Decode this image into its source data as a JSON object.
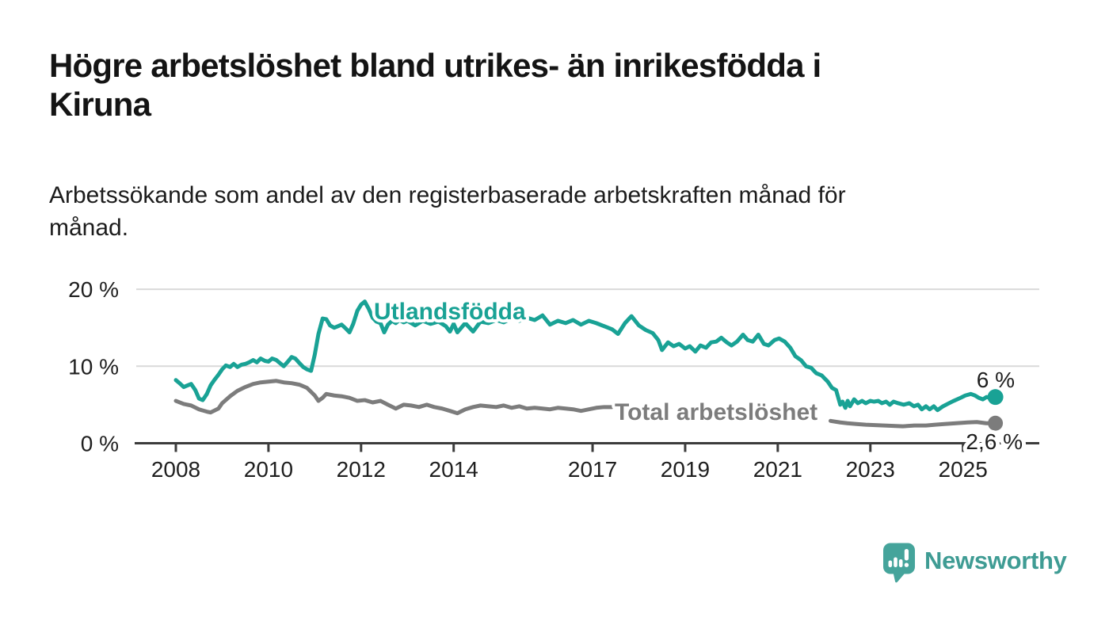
{
  "header": {
    "title_line1": "Högre arbetslöshet bland utrikes- än inrikesfödda i",
    "title_line2": "Kiruna",
    "subtitle_line1": "Arbetssökande som andel av den registerbaserade arbetskraften månad för",
    "subtitle_line2": "månad."
  },
  "branding": {
    "logo_text": "Newsworthy",
    "logo_text_color": "#3f9c94",
    "logo_icon": "newsworthy-bubble-barchart-icon",
    "logo_icon_color": "#45a49b"
  },
  "chart_data": {
    "type": "line",
    "title": "Högre arbetslöshet bland utrikes- än inrikesfödda i Kiruna",
    "subtitle": "Arbetssökande som andel av den registerbaserade arbetskraften månad för månad.",
    "unit": "%",
    "grid": true,
    "legend_position": "inline-labels",
    "x_axis": {
      "range": [
        2008.0,
        2025.7
      ],
      "ticks": [
        2008,
        2010,
        2012,
        2014,
        2017,
        2019,
        2021,
        2023,
        2025
      ],
      "tick_labels": [
        "2008",
        "2010",
        "2012",
        "2014",
        "2017",
        "2019",
        "2021",
        "2023",
        "2025"
      ]
    },
    "y_axis": {
      "range": [
        0,
        20
      ],
      "ticks": [
        0,
        10,
        20
      ],
      "tick_labels": [
        "0 %",
        "10 %",
        "20 %"
      ]
    },
    "series": [
      {
        "id": "utlandsfodda",
        "name": "Utlandsfödda",
        "color": "#19a295",
        "end_label": "6 %",
        "end_value": 6.0,
        "segments": [
          [
            [
              2008.0,
              8.2
            ],
            [
              2008.08,
              7.8
            ],
            [
              2008.17,
              7.3
            ],
            [
              2008.25,
              7.5
            ],
            [
              2008.33,
              7.7
            ],
            [
              2008.42,
              6.9
            ],
            [
              2008.5,
              5.8
            ],
            [
              2008.58,
              5.6
            ],
            [
              2008.67,
              6.4
            ],
            [
              2008.75,
              7.5
            ],
            [
              2008.83,
              8.2
            ],
            [
              2008.92,
              8.9
            ],
            [
              2009.0,
              9.6
            ],
            [
              2009.08,
              10.1
            ],
            [
              2009.17,
              9.9
            ],
            [
              2009.25,
              10.3
            ],
            [
              2009.33,
              9.9
            ],
            [
              2009.42,
              10.2
            ],
            [
              2009.5,
              10.3
            ],
            [
              2009.58,
              10.5
            ],
            [
              2009.67,
              10.8
            ],
            [
              2009.75,
              10.5
            ],
            [
              2009.83,
              11.0
            ],
            [
              2009.92,
              10.7
            ],
            [
              2010.0,
              10.6
            ],
            [
              2010.08,
              11.0
            ],
            [
              2010.17,
              10.8
            ],
            [
              2010.25,
              10.4
            ],
            [
              2010.33,
              10.0
            ],
            [
              2010.42,
              10.6
            ],
            [
              2010.5,
              11.2
            ],
            [
              2010.58,
              11.0
            ],
            [
              2010.67,
              10.4
            ],
            [
              2010.75,
              9.9
            ],
            [
              2010.83,
              9.6
            ],
            [
              2010.92,
              9.4
            ],
            [
              2011.0,
              11.5
            ],
            [
              2011.08,
              14.2
            ],
            [
              2011.17,
              16.2
            ],
            [
              2011.25,
              16.1
            ],
            [
              2011.33,
              15.3
            ],
            [
              2011.42,
              15.0
            ],
            [
              2011.5,
              15.2
            ],
            [
              2011.58,
              15.4
            ],
            [
              2011.67,
              14.9
            ],
            [
              2011.75,
              14.4
            ],
            [
              2011.83,
              15.5
            ],
            [
              2011.92,
              17.2
            ],
            [
              2012.0,
              18.0
            ],
            [
              2012.08,
              18.4
            ],
            [
              2012.17,
              17.4
            ],
            [
              2012.25,
              16.3
            ],
            [
              2012.33,
              15.8
            ],
            [
              2012.42,
              15.6
            ],
            [
              2012.5,
              14.4
            ],
            [
              2012.58,
              15.4
            ],
            [
              2012.67,
              15.9
            ],
            [
              2012.75,
              15.6
            ],
            [
              2012.83,
              16.0
            ],
            [
              2012.92,
              15.7
            ],
            [
              2013.0,
              15.9
            ],
            [
              2013.17,
              15.3
            ],
            [
              2013.33,
              15.9
            ],
            [
              2013.5,
              15.5
            ],
            [
              2013.67,
              15.8
            ],
            [
              2013.83,
              15.2
            ],
            [
              2013.92,
              14.5
            ],
            [
              2014.0,
              15.5
            ],
            [
              2014.08,
              14.4
            ],
            [
              2014.25,
              15.6
            ],
            [
              2014.42,
              14.5
            ],
            [
              2014.58,
              15.8
            ],
            [
              2014.75,
              15.6
            ],
            [
              2014.92,
              16.0
            ],
            [
              2015.08,
              15.7
            ],
            [
              2015.25,
              16.2
            ],
            [
              2015.42,
              15.9
            ],
            [
              2015.58,
              16.3
            ],
            [
              2015.75,
              16.0
            ],
            [
              2015.92,
              16.6
            ],
            [
              2016.08,
              15.4
            ],
            [
              2016.25,
              15.9
            ],
            [
              2016.42,
              15.6
            ],
            [
              2016.58,
              16.0
            ],
            [
              2016.75,
              15.4
            ],
            [
              2016.92,
              15.9
            ],
            [
              2017.08,
              15.6
            ],
            [
              2017.25,
              15.2
            ],
            [
              2017.42,
              14.8
            ],
            [
              2017.55,
              14.2
            ],
            [
              2017.7,
              15.6
            ],
            [
              2017.84,
              16.5
            ],
            [
              2018.0,
              15.3
            ],
            [
              2018.15,
              14.7
            ],
            [
              2018.3,
              14.3
            ],
            [
              2018.42,
              13.4
            ],
            [
              2018.5,
              12.1
            ],
            [
              2018.63,
              13.1
            ],
            [
              2018.75,
              12.6
            ],
            [
              2018.87,
              12.9
            ],
            [
              2019.0,
              12.3
            ],
            [
              2019.1,
              12.6
            ],
            [
              2019.22,
              11.9
            ],
            [
              2019.33,
              12.7
            ],
            [
              2019.45,
              12.4
            ],
            [
              2019.56,
              13.1
            ],
            [
              2019.67,
              13.2
            ],
            [
              2019.78,
              13.7
            ],
            [
              2019.9,
              13.1
            ],
            [
              2020.0,
              12.7
            ],
            [
              2020.12,
              13.2
            ],
            [
              2020.25,
              14.1
            ],
            [
              2020.35,
              13.4
            ],
            [
              2020.46,
              13.2
            ],
            [
              2020.58,
              14.1
            ],
            [
              2020.7,
              12.9
            ],
            [
              2020.8,
              12.7
            ],
            [
              2020.93,
              13.4
            ],
            [
              2021.03,
              13.6
            ],
            [
              2021.15,
              13.2
            ],
            [
              2021.27,
              12.4
            ],
            [
              2021.38,
              11.3
            ],
            [
              2021.5,
              10.8
            ],
            [
              2021.61,
              10.0
            ],
            [
              2021.72,
              9.8
            ],
            [
              2021.83,
              9.1
            ],
            [
              2021.95,
              8.8
            ],
            [
              2022.08,
              8.0
            ],
            [
              2022.17,
              7.2
            ],
            [
              2022.26,
              6.9
            ],
            [
              2022.35,
              5.0
            ],
            [
              2022.4,
              5.4
            ],
            [
              2022.46,
              4.6
            ],
            [
              2022.51,
              5.5
            ],
            [
              2022.56,
              4.8
            ],
            [
              2022.65,
              5.7
            ],
            [
              2022.73,
              5.2
            ],
            [
              2022.82,
              5.5
            ],
            [
              2022.9,
              5.2
            ],
            [
              2023.0,
              5.5
            ],
            [
              2023.08,
              5.4
            ],
            [
              2023.17,
              5.5
            ],
            [
              2023.25,
              5.2
            ],
            [
              2023.34,
              5.4
            ],
            [
              2023.42,
              5.0
            ],
            [
              2023.5,
              5.4
            ],
            [
              2023.6,
              5.2
            ],
            [
              2023.72,
              5.0
            ],
            [
              2023.84,
              5.2
            ],
            [
              2023.94,
              4.8
            ],
            [
              2024.03,
              5.0
            ],
            [
              2024.11,
              4.4
            ],
            [
              2024.2,
              4.8
            ],
            [
              2024.28,
              4.4
            ],
            [
              2024.37,
              4.8
            ],
            [
              2024.45,
              4.3
            ],
            [
              2024.57,
              4.8
            ],
            [
              2024.7,
              5.2
            ],
            [
              2024.8,
              5.5
            ],
            [
              2024.95,
              5.9
            ],
            [
              2025.05,
              6.2
            ],
            [
              2025.17,
              6.4
            ],
            [
              2025.26,
              6.2
            ],
            [
              2025.34,
              5.9
            ],
            [
              2025.43,
              5.7
            ],
            [
              2025.51,
              6.0
            ],
            [
              2025.6,
              5.9
            ],
            [
              2025.7,
              6.0
            ]
          ]
        ]
      },
      {
        "id": "total-arbetsloshet",
        "name": "Total arbetslöshet",
        "color": "#7c7c7c",
        "end_label": "2,6 %",
        "end_value": 2.6,
        "segments": [
          [
            [
              2008.0,
              5.5
            ],
            [
              2008.17,
              5.1
            ],
            [
              2008.33,
              4.9
            ],
            [
              2008.5,
              4.4
            ],
            [
              2008.67,
              4.1
            ],
            [
              2008.75,
              4.0
            ],
            [
              2008.92,
              4.5
            ],
            [
              2009.0,
              5.2
            ],
            [
              2009.17,
              6.1
            ],
            [
              2009.33,
              6.8
            ],
            [
              2009.5,
              7.3
            ],
            [
              2009.67,
              7.7
            ],
            [
              2009.83,
              7.9
            ],
            [
              2010.0,
              8.0
            ],
            [
              2010.17,
              8.1
            ],
            [
              2010.33,
              7.9
            ],
            [
              2010.5,
              7.8
            ],
            [
              2010.67,
              7.6
            ],
            [
              2010.83,
              7.2
            ],
            [
              2011.0,
              6.2
            ],
            [
              2011.08,
              5.5
            ],
            [
              2011.17,
              5.9
            ],
            [
              2011.25,
              6.4
            ],
            [
              2011.42,
              6.2
            ],
            [
              2011.58,
              6.1
            ],
            [
              2011.75,
              5.9
            ],
            [
              2011.92,
              5.5
            ],
            [
              2012.08,
              5.6
            ],
            [
              2012.25,
              5.3
            ],
            [
              2012.42,
              5.5
            ],
            [
              2012.58,
              5.0
            ],
            [
              2012.75,
              4.5
            ],
            [
              2012.92,
              5.0
            ],
            [
              2013.08,
              4.9
            ],
            [
              2013.25,
              4.7
            ],
            [
              2013.42,
              5.0
            ],
            [
              2013.58,
              4.7
            ],
            [
              2013.75,
              4.5
            ],
            [
              2013.92,
              4.2
            ],
            [
              2014.08,
              3.9
            ],
            [
              2014.25,
              4.4
            ],
            [
              2014.42,
              4.7
            ],
            [
              2014.58,
              4.9
            ],
            [
              2014.75,
              4.8
            ],
            [
              2014.92,
              4.7
            ],
            [
              2015.08,
              4.9
            ],
            [
              2015.25,
              4.6
            ],
            [
              2015.42,
              4.8
            ],
            [
              2015.58,
              4.5
            ],
            [
              2015.75,
              4.6
            ],
            [
              2015.92,
              4.5
            ],
            [
              2016.08,
              4.4
            ],
            [
              2016.25,
              4.6
            ],
            [
              2016.42,
              4.5
            ],
            [
              2016.58,
              4.4
            ],
            [
              2016.75,
              4.2
            ],
            [
              2016.92,
              4.4
            ],
            [
              2017.08,
              4.6
            ],
            [
              2017.25,
              4.7
            ],
            [
              2017.42,
              4.7
            ]
          ],
          [
            [
              2022.14,
              2.9
            ],
            [
              2022.35,
              2.7
            ],
            [
              2022.5,
              2.6
            ],
            [
              2022.7,
              2.5
            ],
            [
              2022.9,
              2.4
            ],
            [
              2023.1,
              2.35
            ],
            [
              2023.3,
              2.3
            ],
            [
              2023.5,
              2.25
            ],
            [
              2023.7,
              2.2
            ],
            [
              2023.95,
              2.3
            ],
            [
              2024.2,
              2.3
            ],
            [
              2024.4,
              2.4
            ],
            [
              2024.6,
              2.5
            ],
            [
              2024.85,
              2.6
            ],
            [
              2025.1,
              2.7
            ],
            [
              2025.3,
              2.75
            ],
            [
              2025.5,
              2.6
            ],
            [
              2025.7,
              2.6
            ]
          ]
        ]
      }
    ]
  }
}
